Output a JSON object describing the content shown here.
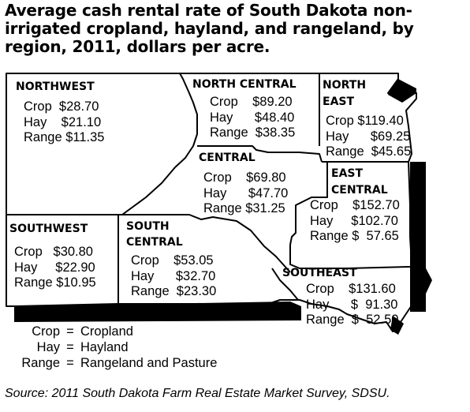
{
  "title": "Average cash rental rate of South Dakota non-irrigated cropland, hayland, and rangeland, by region, 2011, dollars per acre.",
  "regions": {
    "northwest": {
      "name": "NORTHWEST",
      "crop": "Crop  $28.70",
      "hay": "Hay    $21.10",
      "range": "Range $11.35"
    },
    "north_central": {
      "name": "NORTH CENTRAL",
      "crop": "Crop    $89.20",
      "hay": "Hay      $48.40",
      "range": "Range  $38.35"
    },
    "north_east": {
      "name_line1": "NORTH",
      "name_line2": "EAST",
      "crop": "Crop $119.40",
      "hay": "Hay      $69.25",
      "range": "Range  $45.65"
    },
    "central": {
      "name": "CENTRAL",
      "crop": "Crop    $69.80",
      "hay": "Hay      $47.70",
      "range": "Range $31.25"
    },
    "east_central": {
      "name_line1": "EAST",
      "name_line2": "CENTRAL",
      "crop": "Crop    $152.70",
      "hay": "Hay     $102.70",
      "range": "Range $  57.65"
    },
    "southwest": {
      "name": "SOUTHWEST",
      "crop": "Crop   $30.80",
      "hay": "Hay     $22.90",
      "range": "Range $10.95"
    },
    "south_central": {
      "name_line1": "SOUTH",
      "name_line2": "CENTRAL",
      "crop": "Crop    $53.05",
      "hay": "Hay      $32.70",
      "range": "Range  $23.30"
    },
    "southeast": {
      "name": "SOUTHEAST",
      "crop": "Crop    $131.60",
      "hay": "Hay      $  91.30",
      "range": "Range  $  52.50"
    }
  },
  "legend": [
    {
      "abbr": "Crop",
      "eq": "=",
      "full": "Cropland"
    },
    {
      "abbr": "Hay",
      "eq": "=",
      "full": "Hayland"
    },
    {
      "abbr": "Range",
      "eq": "=",
      "full": "Rangeland and Pasture"
    }
  ],
  "source": "Source: 2011 South Dakota Farm Real Estate Market Survey, SDSU."
}
